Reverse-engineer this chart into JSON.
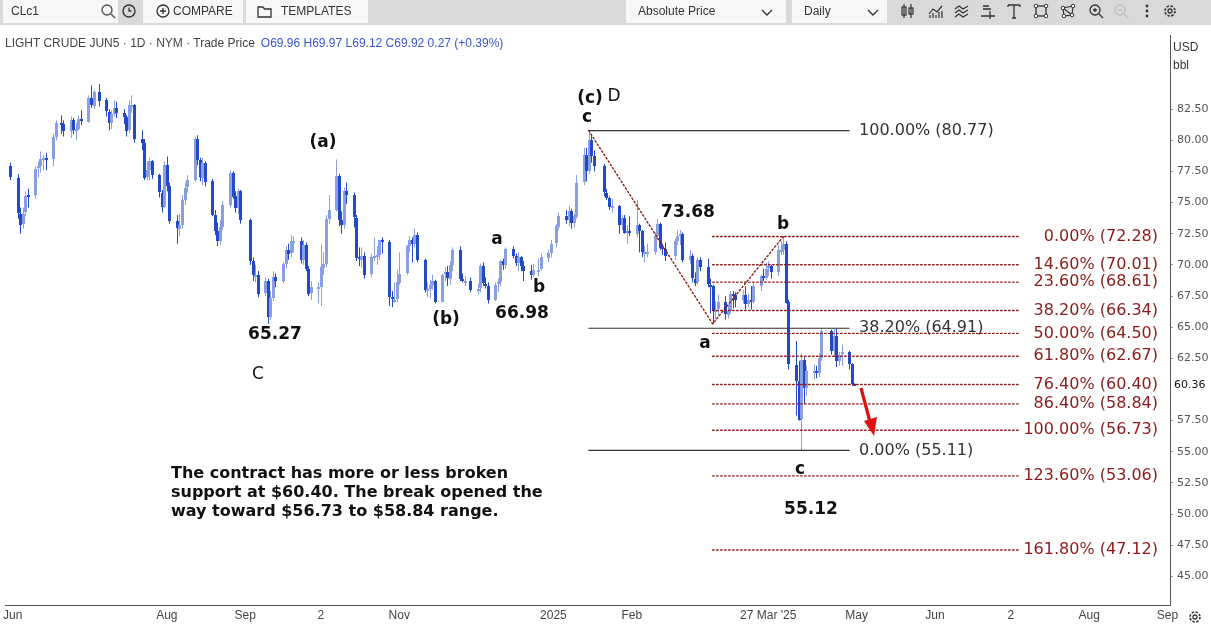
{
  "chart_data": {
    "type": "candlestick",
    "title": "LIGHT CRUDE JUN5 · 1D · NYM · Trade Price",
    "subtitle": "O69.96 H69.97 L69.12 C69.92 0.27 (+0.39%)",
    "xlim": [
      "2024-05-29",
      "2025-09-02"
    ],
    "xticks": [
      {
        "value": "2024-06-01",
        "label": "Jun"
      },
      {
        "value": "2024-08-01",
        "label": "Aug"
      },
      {
        "value": "2024-09-01",
        "label": "Sep"
      },
      {
        "value": "2024-10-01",
        "label": "2"
      },
      {
        "value": "2024-11-01",
        "label": "Nov"
      },
      {
        "value": "2025-01-01",
        "label": "2025"
      },
      {
        "value": "2025-02-01",
        "label": "Feb"
      },
      {
        "value": "2025-03-27",
        "label": "27 Mar '25"
      },
      {
        "value": "2025-05-01",
        "label": "May"
      },
      {
        "value": "2025-06-01",
        "label": "Jun"
      },
      {
        "value": "2025-07-01",
        "label": "2"
      },
      {
        "value": "2025-08-01",
        "label": "Aug"
      },
      {
        "value": "2025-09-01",
        "label": "Sep"
      }
    ],
    "ylim": [
      42.7,
      88.4
    ],
    "yticks": [
      {
        "value": 45,
        "label": "45.00"
      },
      {
        "value": 47.5,
        "label": "47.50"
      },
      {
        "value": 50,
        "label": "50.00"
      },
      {
        "value": 52.5,
        "label": "52.50"
      },
      {
        "value": 55,
        "label": "55.00"
      },
      {
        "value": 57.5,
        "label": "57.50"
      },
      {
        "value": 60,
        "label": null
      },
      {
        "value": 62.5,
        "label": "62.50"
      },
      {
        "value": 65,
        "label": "65.00"
      },
      {
        "value": 67.5,
        "label": "67.50"
      },
      {
        "value": 70,
        "label": "70.00"
      },
      {
        "value": 72.5,
        "label": "72.50"
      },
      {
        "value": 75,
        "label": "75.00"
      },
      {
        "value": 77.5,
        "label": "77.50"
      },
      {
        "value": 80,
        "label": "80.00"
      },
      {
        "value": 82.5,
        "label": "82.50"
      }
    ],
    "series": [
      {
        "type": "line",
        "name": "100.00% (80.77)",
        "color": "#333333",
        "line_style": "solid",
        "x": [
          "2025-01-15",
          "2025-04-28"
        ],
        "values": [
          80.77,
          80.77
        ]
      },
      {
        "type": "line",
        "name": "38.20% (64.91)",
        "color": "#333333",
        "line_style": "solid",
        "x": [
          "2025-01-15",
          "2025-04-28"
        ],
        "values": [
          64.91,
          64.91
        ]
      },
      {
        "type": "line",
        "name": "0.00% (55.11)",
        "color": "#333333",
        "line_style": "solid",
        "x": [
          "2025-01-15",
          "2025-04-28"
        ],
        "values": [
          55.11,
          55.11
        ]
      },
      {
        "type": "line",
        "name": "0.00% (72.28)",
        "color": "#8b1a1a",
        "line_style": "dotted",
        "x": [
          "2025-03-05",
          "2025-07-04"
        ],
        "values": [
          72.28,
          72.28
        ]
      },
      {
        "type": "line",
        "name": "14.60% (70.01)",
        "color": "#8b1a1a",
        "line_style": "dotted",
        "x": [
          "2025-03-05",
          "2025-07-04"
        ],
        "values": [
          70.01,
          70.01
        ]
      },
      {
        "type": "line",
        "name": "23.60% (68.61)",
        "color": "#8b1a1a",
        "line_style": "dotted",
        "x": [
          "2025-03-05",
          "2025-07-04"
        ],
        "values": [
          68.61,
          68.61
        ]
      },
      {
        "type": "line",
        "name": "38.20% (66.34)",
        "color": "#8b1a1a",
        "line_style": "dotted",
        "x": [
          "2025-03-05",
          "2025-07-04"
        ],
        "values": [
          66.34,
          66.34
        ]
      },
      {
        "type": "line",
        "name": "50.00% (64.50)",
        "color": "#8b1a1a",
        "line_style": "dotted",
        "x": [
          "2025-03-05",
          "2025-07-04"
        ],
        "values": [
          64.5,
          64.5
        ]
      },
      {
        "type": "line",
        "name": "61.80% (62.67)",
        "color": "#8b1a1a",
        "line_style": "dotted",
        "x": [
          "2025-03-05",
          "2025-07-04"
        ],
        "values": [
          62.67,
          62.67
        ]
      },
      {
        "type": "line",
        "name": "76.40% (60.40)",
        "color": "#8b1a1a",
        "line_style": "dotted",
        "x": [
          "2025-03-05",
          "2025-07-04"
        ],
        "values": [
          60.4,
          60.4
        ]
      },
      {
        "type": "line",
        "name": "86.40% (58.84)",
        "color": "#8b1a1a",
        "line_style": "dotted",
        "x": [
          "2025-03-05",
          "2025-07-04"
        ],
        "values": [
          58.84,
          58.84
        ]
      },
      {
        "type": "line",
        "name": "100.00% (56.73)",
        "color": "#8b1a1a",
        "line_style": "dotted",
        "x": [
          "2025-03-05",
          "2025-07-04"
        ],
        "values": [
          56.73,
          56.73
        ]
      },
      {
        "type": "line",
        "name": "123.60% (53.06)",
        "color": "#8b1a1a",
        "line_style": "dotted",
        "x": [
          "2025-03-05",
          "2025-07-04"
        ],
        "values": [
          53.06,
          53.06
        ]
      },
      {
        "type": "line",
        "name": "161.80% (47.12)",
        "color": "#8b1a1a",
        "line_style": "dotted",
        "x": [
          "2025-03-05",
          "2025-07-04"
        ],
        "values": [
          47.12,
          47.12
        ]
      },
      {
        "type": "line",
        "color": "#8b1a1a",
        "line_style": "dotted",
        "x": [
          "2025-01-15",
          "2025-03-05",
          "2025-04-02"
        ],
        "values": [
          80.77,
          65.27,
          72.28
        ]
      },
      {
        "colors": [
          "#2149c8",
          "#2149c8",
          "#2149c8",
          "#8a9fe3",
          "#8a9fe3",
          "#2149c8",
          "#8a9fe3",
          "#8a9fe3",
          "#8a9fe3",
          "#8a9fe3",
          "#2149c8",
          "#8a9fe3",
          "#8a9fe3",
          "#2149c8",
          "#2149c8",
          "#8a9fe3",
          "#2149c8",
          "#8a9fe3",
          "#8a9fe3",
          "#2149c8",
          "#8a9fe3",
          "#2149c8",
          "#8a9fe3",
          "#2149c8",
          "#2149c8",
          "#2149c8",
          "#8a9fe3",
          "#8a9fe3",
          "#2149c8",
          "#2149c8",
          "#2149c8",
          "#8a9fe3",
          "#8a9fe3",
          "#2149c8",
          "#2149c8",
          "#2149c8",
          "#8a9fe3",
          "#8a9fe3",
          "#2149c8",
          "#2149c8",
          "#2149c8",
          "#8a9fe3",
          "#2149c8",
          "#2149c8",
          "#2149c8",
          "#8a9fe3",
          "#8a9fe3",
          "#8a9fe3",
          "#8a9fe3",
          "#8a9fe3",
          "#2149c8",
          "#2149c8",
          "#8a9fe3",
          "#2149c8",
          "#2149c8",
          "#2149c8",
          "#2149c8",
          "#8a9fe3",
          "#8a9fe3",
          "#8a9fe3",
          "#2149c8",
          "#2149c8",
          "#8a9fe3",
          "#2149c8",
          "#2149c8",
          "#2149c8",
          "#8a9fe3",
          "#2149c8",
          "#8a9fe3",
          "#2149c8",
          "#8a9fe3",
          "#8a9fe3",
          "#2149c8",
          "#8a9fe3",
          "#8a9fe3",
          "#2149c8",
          "#8a9fe3",
          "#8a9fe3",
          "#2149c8",
          "#8a9fe3",
          "#2149c8",
          "#2149c8",
          "#8a9fe3",
          "#8a9fe3",
          "#8a9fe3",
          "#8a9fe3",
          "#8a9fe3",
          "#8a9fe3",
          "#8a9fe3",
          "#2149c8",
          "#2149c8",
          "#8a9fe3",
          "#2149c8",
          "#2149c8",
          "#2149c8",
          "#2149c8",
          "#8a9fe3",
          "#2149c8",
          "#8a9fe3",
          "#8a9fe3",
          "#8a9fe3",
          "#8a9fe3",
          "#2149c8",
          "#2149c8",
          "#2149c8",
          "#8a9fe3",
          "#8a9fe3",
          "#8a9fe3",
          "#8a9fe3",
          "#8a9fe3",
          "#2149c8",
          "#8a9fe3",
          "#2149c8",
          "#2149c8",
          "#8a9fe3",
          "#8a9fe3",
          "#8a9fe3",
          "#2149c8",
          "#8a9fe3",
          "#8a9fe3",
          "#2149c8",
          "#8a9fe3",
          "#8a9fe3",
          "#2149c8",
          "#2149c8",
          "#8a9fe3",
          "#2149c8",
          "#8a9fe3",
          "#8a9fe3",
          "#2149c8",
          "#2149c8",
          "#2149c8",
          "#8a9fe3",
          "#8a9fe3",
          "#8a9fe3",
          "#2149c8",
          "#8a9fe3",
          "#2149c8",
          "#2149c8",
          "#8a9fe3",
          "#2149c8",
          "#2149c8",
          "#2149c8",
          "#8a9fe3",
          "#8a9fe3",
          "#8a9fe3",
          "#8a9fe3",
          "#8a9fe3",
          "#8a9fe3",
          "#8a9fe3",
          "#2149c8",
          "#8a9fe3",
          "#2149c8",
          "#8a9fe3",
          "#8a9fe3",
          "#8a9fe3",
          "#2149c8",
          "#8a9fe3",
          "#2149c8",
          "#2149c8",
          "#2149c8",
          "#2149c8",
          "#2149c8",
          "#8a9fe3",
          "#2149c8",
          "#8a9fe3",
          "#2149c8",
          "#8a9fe3",
          "#2149c8",
          "#8a9fe3",
          "#2149c8",
          "#2149c8",
          "#8a9fe3",
          "#8a9fe3",
          "#8a9fe3",
          "#8a9fe3",
          "#2149c8",
          "#2149c8",
          "#2149c8",
          "#8a9fe3",
          "#8a9fe3",
          "#8a9fe3",
          "#2149c8",
          "#8a9fe3",
          "#2149c8",
          "#2149c8",
          "#8a9fe3",
          "#2149c8",
          "#2149c8",
          "#2149c8",
          "#2149c8",
          "#8a9fe3",
          "#8a9fe3",
          "#2149c8",
          "#8a9fe3",
          "#8a9fe3",
          "#2149c8",
          "#2149c8",
          "#8a9fe3",
          "#2149c8",
          "#8a9fe3",
          "#2149c8",
          "#8a9fe3",
          "#8a9fe3",
          "#2149c8",
          "#8a9fe3",
          "#8a9fe3",
          "#2149c8",
          "#8a9fe3",
          "#8a9fe3",
          "#8a9fe3",
          "#2149c8",
          "#2149c8",
          "#2149c8",
          "#2149c8",
          "#8a9fe3",
          "#2149c8",
          "#8a9fe3",
          "#8a9fe3",
          "#2149c8",
          "#8a9fe3",
          "#8a9fe3",
          "#2149c8",
          "#8a9fe3",
          "#2149c8",
          "#8a9fe3",
          "#8a9fe3",
          "#2149c8",
          "#2149c8",
          "#2149c8"
        ],
        "x": [
          "2024-05-31",
          "2024-06-03",
          "2024-06-04",
          "2024-06-05",
          "2024-06-06",
          "2024-06-07",
          "2024-06-10",
          "2024-06-11",
          "2024-06-12",
          "2024-06-13",
          "2024-06-14",
          "2024-06-17",
          "2024-06-18",
          "2024-06-20",
          "2024-06-21",
          "2024-06-24",
          "2024-06-25",
          "2024-06-26",
          "2024-06-27",
          "2024-06-28",
          "2024-07-01",
          "2024-07-02",
          "2024-07-03",
          "2024-07-05",
          "2024-07-08",
          "2024-07-09",
          "2024-07-10",
          "2024-07-11",
          "2024-07-12",
          "2024-07-15",
          "2024-07-16",
          "2024-07-17",
          "2024-07-18",
          "2024-07-19",
          "2024-07-22",
          "2024-07-23",
          "2024-07-24",
          "2024-07-25",
          "2024-07-26",
          "2024-07-29",
          "2024-07-30",
          "2024-07-31",
          "2024-08-01",
          "2024-08-02",
          "2024-08-05",
          "2024-08-06",
          "2024-08-07",
          "2024-08-08",
          "2024-08-09",
          "2024-08-12",
          "2024-08-13",
          "2024-08-14",
          "2024-08-15",
          "2024-08-16",
          "2024-08-19",
          "2024-08-20",
          "2024-08-21",
          "2024-08-22",
          "2024-08-23",
          "2024-08-26",
          "2024-08-27",
          "2024-08-28",
          "2024-08-29",
          "2024-08-30",
          "2024-09-03",
          "2024-09-04",
          "2024-09-05",
          "2024-09-06",
          "2024-09-09",
          "2024-09-10",
          "2024-09-11",
          "2024-09-12",
          "2024-09-13",
          "2024-09-16",
          "2024-09-17",
          "2024-09-18",
          "2024-09-19",
          "2024-09-20",
          "2024-09-23",
          "2024-09-24",
          "2024-09-25",
          "2024-09-26",
          "2024-09-27",
          "2024-09-30",
          "2024-10-01",
          "2024-10-02",
          "2024-10-03",
          "2024-10-04",
          "2024-10-07",
          "2024-10-08",
          "2024-10-09",
          "2024-10-10",
          "2024-10-11",
          "2024-10-14",
          "2024-10-15",
          "2024-10-16",
          "2024-10-17",
          "2024-10-18",
          "2024-10-21",
          "2024-10-22",
          "2024-10-23",
          "2024-10-24",
          "2024-10-25",
          "2024-10-28",
          "2024-10-29",
          "2024-10-30",
          "2024-10-31",
          "2024-11-01",
          "2024-11-04",
          "2024-11-05",
          "2024-11-06",
          "2024-11-07",
          "2024-11-08",
          "2024-11-11",
          "2024-11-12",
          "2024-11-13",
          "2024-11-14",
          "2024-11-15",
          "2024-11-18",
          "2024-11-19",
          "2024-11-20",
          "2024-11-21",
          "2024-11-22",
          "2024-11-25",
          "2024-11-26",
          "2024-11-27",
          "2024-11-29",
          "2024-12-02",
          "2024-12-03",
          "2024-12-04",
          "2024-12-05",
          "2024-12-06",
          "2024-12-09",
          "2024-12-10",
          "2024-12-11",
          "2024-12-12",
          "2024-12-13",
          "2024-12-16",
          "2024-12-17",
          "2024-12-18",
          "2024-12-19",
          "2024-12-20",
          "2024-12-23",
          "2024-12-24",
          "2024-12-26",
          "2024-12-27",
          "2024-12-30",
          "2024-12-31",
          "2025-01-02",
          "2025-01-03",
          "2025-01-06",
          "2025-01-07",
          "2025-01-08",
          "2025-01-09",
          "2025-01-10",
          "2025-01-13",
          "2025-01-14",
          "2025-01-15",
          "2025-01-16",
          "2025-01-17",
          "2025-01-21",
          "2025-01-22",
          "2025-01-23",
          "2025-01-24",
          "2025-01-27",
          "2025-01-28",
          "2025-01-29",
          "2025-01-30",
          "2025-01-31",
          "2025-02-03",
          "2025-02-04",
          "2025-02-05",
          "2025-02-06",
          "2025-02-07",
          "2025-02-10",
          "2025-02-11",
          "2025-02-12",
          "2025-02-13",
          "2025-02-14",
          "2025-02-18",
          "2025-02-19",
          "2025-02-20",
          "2025-02-21",
          "2025-02-24",
          "2025-02-25",
          "2025-02-26",
          "2025-02-27",
          "2025-02-28",
          "2025-03-03",
          "2025-03-04",
          "2025-03-05",
          "2025-03-06",
          "2025-03-07",
          "2025-03-10",
          "2025-03-11",
          "2025-03-12",
          "2025-03-13",
          "2025-03-14",
          "2025-03-17",
          "2025-03-18",
          "2025-03-19",
          "2025-03-20",
          "2025-03-21",
          "2025-03-24",
          "2025-03-25",
          "2025-03-26",
          "2025-03-27",
          "2025-03-28",
          "2025-03-31",
          "2025-04-01",
          "2025-04-02",
          "2025-04-03",
          "2025-04-04",
          "2025-04-07",
          "2025-04-08",
          "2025-04-09",
          "2025-04-10",
          "2025-04-11",
          "2025-04-14",
          "2025-04-15",
          "2025-04-16",
          "2025-04-17",
          "2025-04-21",
          "2025-04-22",
          "2025-04-23",
          "2025-04-24",
          "2025-04-25",
          "2025-04-28",
          "2025-04-29",
          "2025-04-30"
        ],
        "ohlc": [
          [
            77.9,
            78.2,
            76.8,
            77.0
          ],
          [
            77.0,
            77.3,
            73.7,
            74.2
          ],
          [
            74.1,
            74.6,
            72.5,
            73.2
          ],
          [
            73.3,
            74.6,
            72.9,
            74.1
          ],
          [
            74.2,
            75.9,
            73.9,
            75.5
          ],
          [
            75.6,
            76.1,
            74.6,
            75.5
          ],
          [
            75.6,
            77.9,
            75.3,
            77.7
          ],
          [
            77.7,
            78.3,
            77.0,
            77.9
          ],
          [
            77.9,
            79.1,
            77.4,
            78.5
          ],
          [
            78.5,
            78.8,
            77.6,
            78.6
          ],
          [
            78.6,
            79.0,
            77.6,
            78.5
          ],
          [
            78.5,
            80.5,
            77.9,
            80.3
          ],
          [
            80.3,
            81.6,
            80.0,
            81.4
          ],
          [
            81.4,
            82.0,
            80.5,
            81.3
          ],
          [
            81.3,
            81.6,
            80.3,
            80.7
          ],
          [
            80.7,
            81.9,
            80.2,
            81.6
          ],
          [
            81.6,
            81.8,
            80.5,
            80.8
          ],
          [
            80.8,
            81.4,
            80.0,
            80.9
          ],
          [
            80.9,
            82.0,
            80.8,
            81.7
          ],
          [
            81.7,
            82.4,
            81.2,
            81.5
          ],
          [
            81.5,
            83.6,
            81.4,
            83.4
          ],
          [
            83.4,
            84.4,
            82.6,
            82.8
          ],
          [
            82.8,
            84.0,
            82.5,
            83.9
          ],
          [
            83.9,
            84.5,
            82.7,
            83.2
          ],
          [
            83.2,
            83.4,
            81.9,
            82.3
          ],
          [
            82.3,
            82.5,
            80.8,
            81.4
          ],
          [
            81.4,
            82.4,
            80.9,
            82.1
          ],
          [
            82.1,
            83.2,
            81.9,
            82.6
          ],
          [
            82.6,
            83.1,
            81.8,
            82.2
          ],
          [
            82.2,
            82.5,
            81.3,
            81.9
          ],
          [
            81.9,
            82.0,
            80.3,
            80.8
          ],
          [
            80.8,
            83.2,
            80.6,
            82.8
          ],
          [
            82.8,
            83.6,
            82.2,
            82.8
          ],
          [
            82.8,
            82.9,
            79.8,
            80.1
          ],
          [
            80.1,
            80.8,
            79.2,
            79.8
          ],
          [
            79.8,
            80.1,
            76.8,
            77.0
          ],
          [
            77.0,
            78.3,
            76.8,
            77.6
          ],
          [
            77.6,
            78.6,
            76.8,
            78.3
          ],
          [
            78.3,
            78.4,
            76.9,
            77.2
          ],
          [
            77.2,
            77.3,
            75.4,
            75.8
          ],
          [
            75.8,
            76.0,
            74.2,
            74.7
          ],
          [
            74.7,
            78.3,
            74.6,
            78.0
          ],
          [
            78.0,
            78.7,
            75.9,
            76.3
          ],
          [
            76.3,
            76.6,
            73.3,
            73.5
          ],
          [
            73.5,
            74.0,
            71.7,
            72.9
          ],
          [
            72.9,
            74.1,
            72.3,
            73.2
          ],
          [
            73.2,
            75.6,
            72.9,
            75.2
          ],
          [
            75.2,
            76.6,
            74.8,
            76.2
          ],
          [
            76.2,
            77.2,
            75.8,
            76.8
          ],
          [
            76.8,
            80.3,
            76.7,
            80.1
          ],
          [
            80.1,
            80.4,
            78.0,
            78.4
          ],
          [
            78.4,
            78.6,
            76.7,
            77.0
          ],
          [
            77.0,
            78.6,
            76.4,
            78.2
          ],
          [
            78.2,
            78.3,
            76.3,
            76.7
          ],
          [
            76.7,
            76.9,
            73.9,
            74.0
          ],
          [
            74.0,
            74.4,
            72.4,
            72.7
          ],
          [
            72.7,
            73.4,
            71.5,
            71.9
          ],
          [
            71.9,
            73.6,
            71.6,
            73.0
          ],
          [
            73.0,
            75.1,
            72.8,
            74.8
          ],
          [
            74.8,
            77.6,
            74.6,
            77.4
          ],
          [
            77.4,
            77.5,
            75.3,
            75.5
          ],
          [
            75.5,
            75.9,
            74.2,
            74.5
          ],
          [
            74.5,
            76.1,
            74.1,
            75.9
          ],
          [
            75.9,
            76.0,
            73.3,
            73.6
          ],
          [
            73.6,
            73.7,
            70.0,
            70.3
          ],
          [
            70.3,
            70.6,
            68.7,
            69.2
          ],
          [
            69.2,
            70.0,
            68.6,
            69.2
          ],
          [
            69.2,
            69.5,
            67.4,
            67.7
          ],
          [
            67.7,
            69.0,
            67.5,
            68.7
          ],
          [
            68.7,
            68.9,
            65.27,
            65.8
          ],
          [
            65.8,
            67.9,
            65.6,
            67.3
          ],
          [
            67.3,
            69.5,
            67.1,
            69.0
          ],
          [
            69.0,
            69.3,
            68.2,
            68.7
          ],
          [
            68.7,
            70.2,
            68.5,
            70.1
          ],
          [
            70.1,
            71.5,
            69.7,
            71.2
          ],
          [
            71.2,
            71.7,
            70.4,
            70.9
          ],
          [
            70.9,
            72.4,
            70.6,
            71.9
          ],
          [
            71.9,
            72.3,
            71.0,
            71.9
          ],
          [
            71.9,
            72.2,
            70.1,
            70.4
          ],
          [
            70.4,
            72.0,
            70.0,
            71.6
          ],
          [
            71.6,
            71.8,
            69.5,
            69.7
          ],
          [
            69.7,
            69.9,
            67.5,
            67.7
          ],
          [
            67.7,
            68.7,
            67.2,
            68.2
          ],
          [
            68.2,
            68.6,
            66.9,
            68.2
          ],
          [
            68.2,
            71.6,
            66.7,
            69.8
          ],
          [
            69.8,
            71.0,
            69.2,
            70.1
          ],
          [
            70.1,
            74.0,
            69.8,
            73.7
          ],
          [
            73.7,
            75.6,
            73.3,
            74.4
          ],
          [
            74.4,
            78.46,
            74.3,
            77.1
          ],
          [
            77.1,
            77.3,
            73.1,
            73.6
          ],
          [
            73.6,
            74.3,
            72.5,
            73.2
          ],
          [
            73.2,
            76.2,
            72.9,
            75.9
          ],
          [
            75.9,
            76.6,
            74.9,
            75.6
          ],
          [
            75.6,
            75.8,
            73.0,
            73.8
          ],
          [
            73.8,
            74.0,
            70.3,
            70.6
          ],
          [
            70.6,
            71.4,
            69.9,
            70.4
          ],
          [
            70.4,
            71.4,
            69.8,
            70.7
          ],
          [
            70.7,
            71.0,
            68.9,
            69.2
          ],
          [
            69.2,
            70.9,
            69.0,
            70.6
          ],
          [
            70.6,
            72.2,
            70.3,
            70.7
          ],
          [
            70.7,
            71.5,
            70.0,
            70.8
          ],
          [
            70.8,
            72.0,
            70.4,
            72.0
          ],
          [
            72.0,
            72.2,
            70.9,
            71.8
          ],
          [
            71.8,
            72.0,
            66.7,
            67.4
          ],
          [
            67.4,
            67.9,
            66.6,
            67.2
          ],
          [
            67.2,
            68.6,
            67.0,
            67.2
          ],
          [
            67.2,
            69.6,
            67.0,
            68.6
          ],
          [
            68.6,
            71.0,
            68.4,
            69.3
          ],
          [
            69.3,
            71.6,
            69.2,
            71.5
          ],
          [
            71.5,
            72.3,
            71.0,
            71.99
          ],
          [
            71.99,
            72.2,
            70.2,
            71.7
          ],
          [
            71.7,
            72.9,
            71.4,
            72.4
          ],
          [
            72.4,
            72.6,
            70.2,
            70.4
          ],
          [
            70.4,
            70.5,
            67.8,
            68.0
          ],
          [
            68.0,
            68.6,
            67.4,
            68.1
          ],
          [
            68.1,
            68.8,
            67.3,
            68.4
          ],
          [
            68.4,
            69.2,
            68.0,
            68.7
          ],
          [
            68.7,
            68.8,
            66.9,
            67.0
          ],
          [
            67.0,
            69.3,
            66.98,
            69.2
          ],
          [
            69.2,
            69.8,
            68.7,
            69.4
          ],
          [
            69.4,
            69.9,
            68.3,
            68.9
          ],
          [
            68.9,
            70.3,
            68.4,
            70.0
          ],
          [
            70.0,
            71.4,
            69.5,
            71.2
          ],
          [
            71.2,
            71.5,
            68.7,
            68.9
          ],
          [
            68.9,
            69.3,
            68.6,
            68.7
          ],
          [
            68.7,
            69.1,
            68.3,
            68.7
          ],
          [
            68.7,
            69.0,
            67.8,
            68.0
          ],
          [
            68.0,
            68.5,
            67.6,
            68.1
          ],
          [
            68.1,
            70.1,
            67.8,
            69.9
          ],
          [
            69.9,
            70.2,
            68.3,
            68.5
          ],
          [
            68.5,
            69.0,
            68.1,
            68.3
          ],
          [
            68.3,
            68.6,
            66.9,
            67.2
          ],
          [
            67.2,
            68.6,
            67.1,
            68.4
          ],
          [
            68.4,
            68.9,
            67.8,
            68.6
          ],
          [
            68.6,
            70.4,
            68.3,
            70.3
          ],
          [
            70.3,
            70.5,
            69.6,
            70.0
          ],
          [
            70.0,
            71.4,
            69.7,
            71.3
          ],
          [
            71.3,
            71.5,
            70.5,
            70.7
          ],
          [
            70.7,
            70.9,
            69.9,
            70.1
          ],
          [
            70.1,
            71.0,
            69.5,
            70.6
          ],
          [
            70.6,
            70.7,
            69.5,
            69.9
          ],
          [
            69.9,
            70.3,
            68.7,
            69.5
          ],
          [
            69.5,
            70.0,
            68.8,
            69.2
          ],
          [
            69.2,
            70.1,
            69.0,
            69.6
          ],
          [
            69.6,
            70.5,
            69.1,
            69.6
          ],
          [
            69.6,
            70.9,
            69.5,
            70.6
          ],
          [
            70.6,
            71.2,
            70.2,
            70.99
          ],
          [
            70.99,
            72.0,
            70.6,
            71.7
          ],
          [
            71.7,
            73.3,
            71.4,
            73.1
          ],
          [
            73.1,
            74.2,
            72.8,
            73.96
          ],
          [
            73.96,
            74.4,
            73.3,
            73.6
          ],
          [
            73.6,
            74.7,
            73.1,
            74.3
          ],
          [
            74.3,
            74.5,
            72.9,
            73.3
          ],
          [
            73.3,
            74.1,
            73.0,
            73.9
          ],
          [
            73.9,
            77.2,
            73.7,
            76.6
          ],
          [
            76.6,
            79.4,
            76.4,
            78.8
          ],
          [
            78.8,
            79.4,
            76.7,
            77.5
          ],
          [
            77.5,
            80.77,
            77.3,
            80.0
          ],
          [
            80.0,
            80.4,
            78.2,
            78.7
          ],
          [
            78.7,
            79.2,
            77.5,
            77.9
          ],
          [
            77.9,
            78.1,
            75.5,
            75.8
          ],
          [
            75.8,
            76.1,
            75.2,
            75.4
          ],
          [
            75.4,
            75.5,
            74.4,
            74.7
          ],
          [
            74.7,
            75.3,
            74.2,
            74.7
          ],
          [
            74.7,
            74.8,
            72.5,
            73.2
          ],
          [
            73.2,
            74.0,
            72.8,
            73.8
          ],
          [
            73.8,
            74.0,
            72.5,
            72.6
          ],
          [
            72.6,
            73.2,
            71.7,
            72.7
          ],
          [
            72.7,
            73.9,
            72.3,
            72.5
          ],
          [
            72.5,
            75.2,
            72.2,
            73.2
          ],
          [
            73.2,
            73.3,
            71.0,
            72.7
          ],
          [
            72.7,
            72.8,
            70.6,
            71.0
          ],
          [
            71.0,
            71.5,
            70.2,
            71.0
          ],
          [
            71.0,
            71.7,
            70.6,
            71.0
          ],
          [
            71.0,
            72.6,
            70.8,
            72.3
          ],
          [
            72.3,
            73.68,
            72.0,
            73.3
          ],
          [
            73.3,
            73.4,
            71.2,
            71.4
          ],
          [
            71.4,
            71.7,
            70.8,
            71.3
          ],
          [
            71.3,
            71.8,
            70.3,
            70.7
          ],
          [
            70.7,
            72.1,
            70.4,
            71.9
          ],
          [
            71.9,
            72.8,
            71.6,
            72.3
          ],
          [
            72.3,
            72.8,
            71.6,
            72.5
          ],
          [
            72.5,
            72.6,
            70.2,
            70.4
          ],
          [
            70.4,
            71.2,
            70.1,
            70.7
          ],
          [
            70.7,
            70.9,
            68.6,
            68.9
          ],
          [
            68.9,
            69.4,
            68.3,
            68.6
          ],
          [
            68.6,
            70.6,
            68.4,
            70.4
          ],
          [
            70.4,
            70.6,
            69.5,
            69.8
          ],
          [
            69.8,
            70.5,
            68.2,
            68.4
          ],
          [
            68.4,
            68.9,
            66.1,
            68.3
          ],
          [
            68.3,
            68.4,
            65.27,
            66.3
          ],
          [
            66.3,
            67.1,
            65.6,
            66.4
          ],
          [
            66.4,
            67.6,
            65.9,
            67.0
          ],
          [
            67.0,
            67.5,
            65.6,
            66.0
          ],
          [
            66.0,
            66.8,
            65.7,
            66.3
          ],
          [
            66.3,
            67.9,
            66.1,
            67.7
          ],
          [
            67.7,
            67.9,
            66.5,
            67.6
          ],
          [
            67.6,
            67.8,
            66.6,
            67.2
          ],
          [
            67.2,
            68.0,
            66.9,
            67.6
          ],
          [
            67.6,
            68.3,
            66.4,
            66.9
          ],
          [
            66.9,
            67.7,
            66.6,
            67.2
          ],
          [
            67.2,
            68.3,
            66.4,
            67.0
          ],
          [
            67.0,
            68.5,
            66.9,
            68.3
          ],
          [
            68.3,
            69.2,
            67.9,
            69.1
          ],
          [
            69.1,
            69.7,
            68.7,
            69.0
          ],
          [
            69.0,
            70.2,
            68.8,
            69.7
          ],
          [
            69.7,
            70.3,
            69.1,
            69.9
          ],
          [
            69.9,
            70.0,
            68.9,
            69.4
          ],
          [
            69.4,
            71.6,
            69.1,
            71.2
          ],
          [
            71.2,
            71.9,
            70.8,
            71.2
          ],
          [
            71.2,
            72.28,
            70.8,
            71.7
          ],
          [
            71.7,
            71.9,
            66.9,
            67.0
          ],
          [
            67.0,
            67.2,
            61.6,
            62.0
          ],
          [
            62.0,
            63.9,
            57.9,
            60.7
          ],
          [
            60.7,
            62.3,
            57.5,
            57.6
          ],
          [
            57.6,
            62.9,
            55.12,
            62.35
          ],
          [
            62.35,
            62.6,
            58.8,
            60.1
          ],
          [
            60.1,
            61.9,
            59.5,
            61.5
          ],
          [
            61.5,
            62.0,
            60.8,
            61.5
          ],
          [
            61.5,
            61.9,
            60.9,
            61.3
          ],
          [
            61.3,
            62.9,
            61.0,
            62.5
          ],
          [
            62.5,
            64.9,
            62.3,
            64.7
          ],
          [
            64.7,
            64.8,
            62.8,
            63.1
          ],
          [
            63.1,
            64.9,
            62.6,
            64.3
          ],
          [
            64.3,
            64.9,
            61.8,
            62.3
          ],
          [
            62.3,
            63.0,
            61.9,
            62.8
          ],
          [
            62.8,
            63.6,
            61.9,
            63.0
          ],
          [
            63.0,
            63.1,
            61.6,
            62.05
          ],
          [
            62.05,
            62.1,
            60.3,
            60.42
          ],
          [
            60.42,
            60.5,
            60.3,
            60.36
          ]
        ]
      }
    ],
    "annotations": [
      "The contract has more or less broken support at $60.40.  The break opened the way toward $56.73 to $58.84 range.",
      "CLc1",
      "COMPARE",
      "TEMPLATES",
      "Absolute Price",
      "Daily",
      "USD",
      "bbl",
      "(c)",
      "D",
      "c",
      "(a)",
      "a",
      "b",
      "65.27",
      "C",
      "(b)",
      "66.98",
      "73.68",
      "b",
      "a",
      "c",
      "55.12",
      {
        "text": "60.36",
        "y": 60.36
      }
    ]
  }
}
